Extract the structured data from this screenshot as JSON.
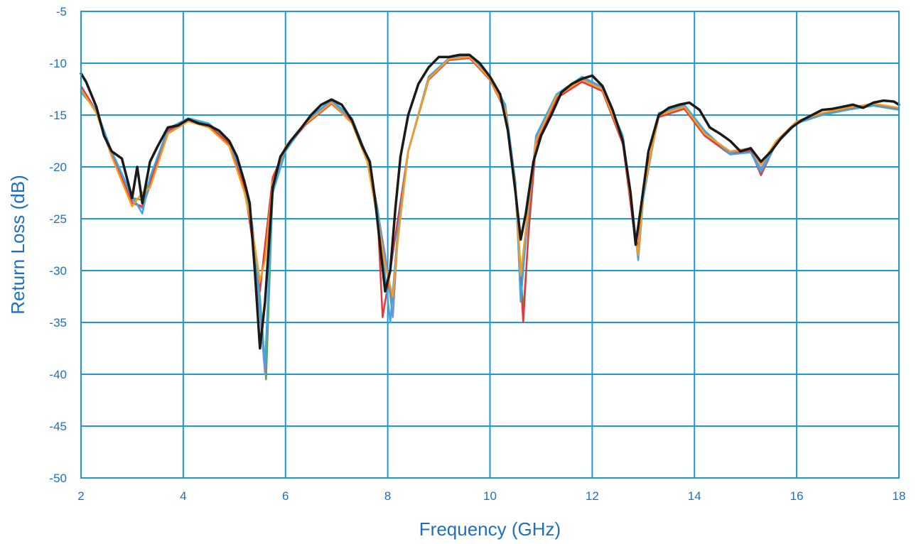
{
  "colors": {
    "grid": "#1a9ad6",
    "frame": "#1a9ad6",
    "text": "#1f6fbf",
    "background": "#ffffff"
  },
  "chart_data": {
    "type": "line",
    "title": "",
    "xlabel": "Frequency (GHz)",
    "ylabel": "Return Loss (dB)",
    "xlim": [
      2,
      18
    ],
    "ylim": [
      -50,
      -5
    ],
    "x_ticks": [
      2,
      4,
      6,
      8,
      10,
      12,
      14,
      16,
      18
    ],
    "y_ticks": [
      -5,
      -10,
      -15,
      -20,
      -25,
      -30,
      -35,
      -40,
      -45,
      -50
    ],
    "grid": true,
    "legend": "none",
    "series": [
      {
        "color": "#1a1a1a",
        "x": [
          2.0,
          2.1,
          2.3,
          2.45,
          2.6,
          2.8,
          3.0,
          3.1,
          3.2,
          3.35,
          3.5,
          3.7,
          3.9,
          4.1,
          4.3,
          4.5,
          4.7,
          4.9,
          5.05,
          5.2,
          5.3,
          5.4,
          5.5,
          5.6,
          5.75,
          5.9,
          6.1,
          6.3,
          6.5,
          6.7,
          6.9,
          7.1,
          7.3,
          7.5,
          7.65,
          7.75,
          7.85,
          7.95,
          8.05,
          8.15,
          8.25,
          8.4,
          8.6,
          8.8,
          9.0,
          9.2,
          9.4,
          9.6,
          9.8,
          10.0,
          10.2,
          10.35,
          10.5,
          10.6,
          10.7,
          10.85,
          11.0,
          11.2,
          11.4,
          11.6,
          11.8,
          12.0,
          12.2,
          12.4,
          12.6,
          12.75,
          12.85,
          12.95,
          13.1,
          13.3,
          13.5,
          13.7,
          13.9,
          14.1,
          14.3,
          14.5,
          14.7,
          14.9,
          15.1,
          15.3,
          15.5,
          15.7,
          15.9,
          16.1,
          16.3,
          16.5,
          16.7,
          16.9,
          17.1,
          17.3,
          17.5,
          17.7,
          17.9,
          18.0
        ],
        "y": [
          -11.0,
          -11.8,
          -14.2,
          -17.0,
          -18.5,
          -19.2,
          -23.0,
          -20.0,
          -23.5,
          -19.5,
          -18.0,
          -16.2,
          -16.0,
          -15.4,
          -15.8,
          -16.0,
          -16.5,
          -17.5,
          -19.0,
          -21.5,
          -23.5,
          -30.0,
          -37.5,
          -33.0,
          -22.0,
          -19.0,
          -17.5,
          -16.3,
          -15.0,
          -14.0,
          -13.5,
          -14.0,
          -15.5,
          -18.0,
          -19.5,
          -23.0,
          -27.5,
          -32.0,
          -30.0,
          -24.0,
          -19.0,
          -15.0,
          -12.0,
          -10.4,
          -9.4,
          -9.4,
          -9.2,
          -9.2,
          -10.0,
          -11.3,
          -13.0,
          -16.5,
          -22.5,
          -27.0,
          -24.5,
          -19.5,
          -17.0,
          -15.0,
          -12.8,
          -12.0,
          -11.5,
          -11.2,
          -12.2,
          -14.5,
          -17.5,
          -22.5,
          -27.5,
          -24.0,
          -18.5,
          -15.0,
          -14.3,
          -14.0,
          -13.8,
          -14.5,
          -16.2,
          -16.8,
          -17.5,
          -18.5,
          -18.2,
          -19.5,
          -18.5,
          -17.2,
          -16.2,
          -15.5,
          -15.0,
          -14.5,
          -14.4,
          -14.2,
          -14.0,
          -14.3,
          -13.8,
          -13.6,
          -13.7,
          -14.0
        ]
      },
      {
        "color": "#f59b23",
        "x": [
          2.0,
          2.3,
          2.6,
          3.0,
          3.2,
          3.35,
          3.7,
          4.1,
          4.5,
          4.9,
          5.2,
          5.35,
          5.5,
          5.6,
          5.75,
          6.0,
          6.4,
          6.9,
          7.3,
          7.6,
          7.8,
          7.95,
          8.1,
          8.2,
          8.4,
          8.8,
          9.2,
          9.6,
          10.0,
          10.3,
          10.5,
          10.6,
          10.7,
          10.9,
          11.3,
          11.8,
          12.2,
          12.6,
          12.8,
          12.9,
          13.0,
          13.3,
          13.8,
          14.2,
          14.7,
          15.1,
          15.3,
          15.6,
          16.0,
          16.5,
          17.0,
          17.5,
          18.0
        ],
        "y": [
          -12.5,
          -14.8,
          -19.0,
          -23.8,
          -22.5,
          -22.0,
          -16.8,
          -15.6,
          -16.2,
          -18.0,
          -22.5,
          -26.0,
          -31.0,
          -29.0,
          -21.5,
          -18.0,
          -15.8,
          -13.8,
          -15.8,
          -19.5,
          -25.0,
          -29.5,
          -32.5,
          -27.0,
          -18.5,
          -11.5,
          -9.6,
          -9.4,
          -11.5,
          -14.5,
          -22.0,
          -30.5,
          -26.0,
          -17.5,
          -13.2,
          -11.6,
          -12.5,
          -17.5,
          -25.0,
          -28.5,
          -22.5,
          -15.0,
          -14.2,
          -16.8,
          -18.5,
          -18.2,
          -19.8,
          -17.5,
          -15.6,
          -14.8,
          -14.3,
          -13.9,
          -14.3
        ]
      },
      {
        "color": "#3fa7e0",
        "x": [
          2.0,
          2.3,
          2.6,
          3.0,
          3.2,
          3.35,
          3.7,
          4.1,
          4.5,
          4.9,
          5.2,
          5.35,
          5.5,
          5.6,
          5.75,
          6.0,
          6.4,
          6.9,
          7.3,
          7.6,
          7.8,
          7.95,
          8.05,
          8.2,
          8.4,
          8.8,
          9.2,
          9.6,
          10.0,
          10.3,
          10.5,
          10.6,
          10.7,
          10.9,
          11.3,
          11.8,
          12.2,
          12.6,
          12.8,
          12.9,
          13.0,
          13.3,
          13.8,
          14.2,
          14.7,
          15.1,
          15.3,
          15.6,
          16.0,
          16.5,
          17.0,
          17.5,
          18.0
        ],
        "y": [
          -12.8,
          -14.5,
          -18.5,
          -22.8,
          -24.5,
          -21.0,
          -16.3,
          -15.3,
          -15.8,
          -17.5,
          -21.5,
          -25.5,
          -33.0,
          -39.0,
          -22.5,
          -18.5,
          -15.6,
          -13.5,
          -15.3,
          -19.0,
          -24.0,
          -30.5,
          -35.0,
          -26.0,
          -18.5,
          -11.3,
          -9.5,
          -9.3,
          -11.3,
          -14.0,
          -21.5,
          -33.0,
          -27.0,
          -17.0,
          -13.0,
          -11.3,
          -12.3,
          -17.0,
          -24.5,
          -29.0,
          -23.0,
          -14.8,
          -14.0,
          -16.5,
          -18.8,
          -18.6,
          -20.5,
          -17.8,
          -15.8,
          -15.0,
          -14.5,
          -14.1,
          -14.5
        ]
      },
      {
        "color": "#e23b3b",
        "x": [
          2.0,
          2.3,
          2.6,
          3.0,
          3.2,
          3.35,
          3.7,
          4.1,
          4.5,
          4.9,
          5.2,
          5.35,
          5.5,
          5.6,
          5.75,
          6.0,
          6.4,
          6.9,
          7.3,
          7.6,
          7.8,
          7.9,
          8.05,
          8.2,
          8.4,
          8.8,
          9.2,
          9.6,
          10.0,
          10.3,
          10.5,
          10.65,
          10.75,
          10.9,
          11.3,
          11.8,
          12.2,
          12.6,
          12.8,
          12.9,
          13.0,
          13.3,
          13.8,
          14.2,
          14.7,
          15.1,
          15.3,
          15.6,
          16.0,
          16.5,
          17.0,
          17.5,
          18.0
        ],
        "y": [
          -12.2,
          -14.6,
          -18.8,
          -23.5,
          -23.8,
          -21.5,
          -16.5,
          -15.5,
          -16.0,
          -17.8,
          -22.0,
          -27.0,
          -32.0,
          -27.5,
          -21.0,
          -18.2,
          -15.9,
          -13.9,
          -15.7,
          -19.3,
          -24.5,
          -34.5,
          -30.0,
          -25.0,
          -18.5,
          -11.6,
          -9.7,
          -9.5,
          -11.6,
          -14.6,
          -22.5,
          -35.0,
          -26.5,
          -17.8,
          -13.4,
          -11.8,
          -12.7,
          -17.8,
          -25.5,
          -28.0,
          -22.0,
          -15.2,
          -14.4,
          -17.0,
          -18.8,
          -18.4,
          -20.8,
          -17.7,
          -15.7,
          -14.9,
          -14.4,
          -14.0,
          -14.4
        ]
      },
      {
        "color": "#7e8fc8",
        "x": [
          2.0,
          2.3,
          2.6,
          3.0,
          3.2,
          3.35,
          3.7,
          4.1,
          4.5,
          4.9,
          5.2,
          5.35,
          5.5,
          5.6,
          5.75,
          6.0,
          6.4,
          6.9,
          7.3,
          7.6,
          7.8,
          7.95,
          8.1,
          8.2,
          8.4,
          8.8,
          9.2,
          9.6,
          10.0,
          10.3,
          10.5,
          10.6,
          10.7,
          10.9,
          11.3,
          11.8,
          12.2,
          12.6,
          12.8,
          12.9,
          13.0,
          13.3,
          13.8,
          14.2,
          14.7,
          15.1,
          15.3,
          15.6,
          16.0,
          16.5,
          17.0,
          17.5,
          18.0
        ],
        "y": [
          -12.6,
          -14.7,
          -18.7,
          -23.2,
          -24.0,
          -21.8,
          -16.6,
          -15.5,
          -16.1,
          -17.9,
          -22.2,
          -26.5,
          -34.0,
          -40.0,
          -22.0,
          -18.3,
          -15.7,
          -13.7,
          -15.6,
          -19.2,
          -24.2,
          -28.5,
          -34.5,
          -26.5,
          -18.5,
          -11.4,
          -9.6,
          -9.4,
          -11.4,
          -14.3,
          -21.8,
          -31.5,
          -26.5,
          -17.3,
          -13.1,
          -11.5,
          -12.4,
          -17.3,
          -24.8,
          -28.8,
          -22.8,
          -14.9,
          -14.1,
          -16.7,
          -18.6,
          -18.5,
          -20.2,
          -17.6,
          -15.7,
          -14.9,
          -14.4,
          -14.0,
          -14.4
        ]
      },
      {
        "color": "#5aa83a",
        "x": [
          2.0,
          2.3,
          2.6,
          3.0,
          3.2,
          3.35,
          3.7,
          4.1,
          4.5,
          4.9,
          5.2,
          5.35,
          5.5,
          5.62,
          5.75,
          6.0,
          6.4,
          6.9,
          7.3,
          7.6,
          7.8,
          7.95,
          8.1,
          8.2,
          8.4,
          8.8,
          9.2,
          9.6,
          10.0,
          10.3,
          10.5,
          10.65,
          10.75,
          10.9,
          11.3,
          11.8,
          12.2,
          12.6,
          12.8,
          12.9,
          13.0,
          13.3,
          13.8,
          14.2,
          14.7,
          15.1,
          15.3,
          15.6,
          16.0,
          16.5,
          17.0,
          17.5,
          18.0
        ],
        "y": [
          -12.4,
          -14.6,
          -18.6,
          -23.0,
          -23.2,
          -21.2,
          -16.4,
          -15.4,
          -15.9,
          -17.7,
          -21.8,
          -25.8,
          -32.5,
          -40.5,
          -22.2,
          -18.4,
          -15.8,
          -13.8,
          -15.5,
          -19.1,
          -24.0,
          -29.0,
          -33.0,
          -26.2,
          -18.5,
          -11.5,
          -9.6,
          -9.4,
          -11.4,
          -14.4,
          -22.0,
          -34.0,
          -26.8,
          -17.5,
          -13.2,
          -11.6,
          -12.5,
          -17.5,
          -25.0,
          -28.2,
          -22.5,
          -15.0,
          -14.2,
          -16.8,
          -18.7,
          -18.5,
          -20.5,
          -17.7,
          -15.7,
          -14.9,
          -14.4,
          -14.0,
          -14.4
        ]
      }
    ]
  }
}
